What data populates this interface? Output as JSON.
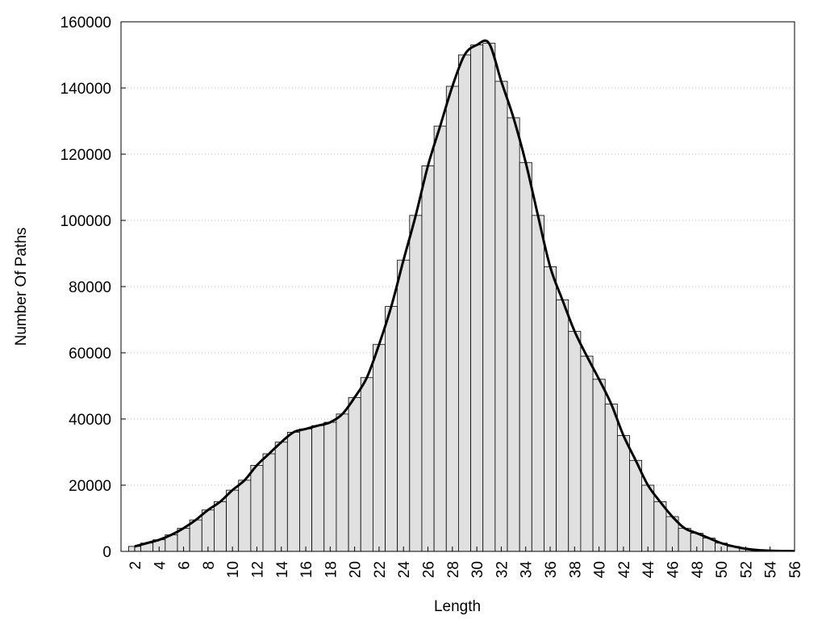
{
  "chart_data": {
    "type": "bar",
    "x_label": "Length",
    "y_label": "Number Of Paths",
    "x": [
      2,
      3,
      4,
      5,
      6,
      7,
      8,
      9,
      10,
      11,
      12,
      13,
      14,
      15,
      16,
      17,
      18,
      19,
      20,
      21,
      22,
      23,
      24,
      25,
      26,
      27,
      28,
      29,
      30,
      31,
      32,
      33,
      34,
      35,
      36,
      37,
      38,
      39,
      40,
      41,
      42,
      43,
      44,
      45,
      46,
      47,
      48,
      49,
      50,
      51,
      52,
      53,
      54,
      55,
      56
    ],
    "values": [
      1500,
      2500,
      3500,
      5000,
      7000,
      9500,
      12500,
      15000,
      18500,
      21500,
      26000,
      29500,
      33000,
      36000,
      37000,
      38000,
      39000,
      41500,
      46500,
      52500,
      62500,
      74000,
      88000,
      101500,
      116500,
      128500,
      140500,
      150000,
      153000,
      153500,
      142000,
      131000,
      117500,
      101500,
      86000,
      76000,
      66500,
      59000,
      52000,
      44500,
      35000,
      27500,
      20000,
      15000,
      10500,
      7000,
      5500,
      4000,
      2500,
      1500,
      800,
      400,
      200,
      100,
      50
    ],
    "color": "#e0e0e0",
    "smooth_line": true,
    "line_color": "#000000",
    "xlim": [
      0.88,
      56
    ],
    "xticks": [
      2,
      4,
      6,
      8,
      10,
      12,
      14,
      16,
      18,
      20,
      22,
      24,
      26,
      28,
      30,
      32,
      34,
      36,
      38,
      40,
      42,
      44,
      46,
      48,
      50,
      52,
      54,
      56
    ],
    "ylim": [
      0,
      160000
    ],
    "yticks": [
      0,
      20000,
      40000,
      60000,
      80000,
      100000,
      120000,
      140000,
      160000
    ],
    "grid": true
  }
}
